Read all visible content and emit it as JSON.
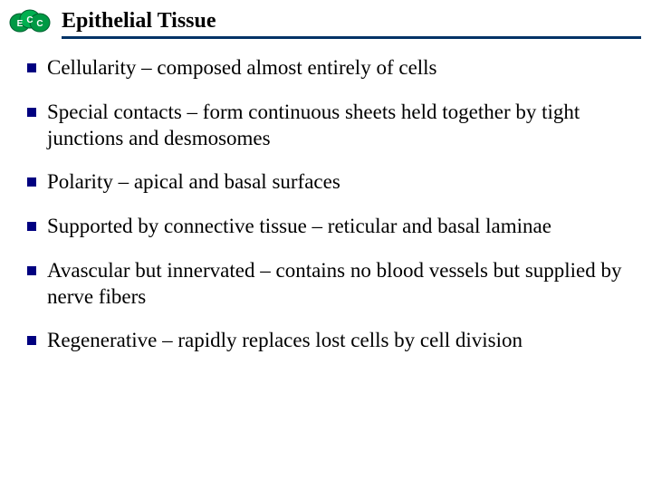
{
  "title": {
    "text": "Epithelial Tissue",
    "fontsize": 24,
    "color": "#000000"
  },
  "rule_color": "#003366",
  "logo": {
    "colors": [
      "#009944",
      "#00b050",
      "#009944"
    ],
    "stroke": "#006030"
  },
  "bullet_style": {
    "color": "#000080",
    "size": 10
  },
  "body": {
    "fontsize": 23,
    "color": "#000000",
    "items": [
      "Cellularity – composed almost entirely of cells",
      "Special contacts – form continuous sheets held together by tight junctions and desmosomes",
      "Polarity – apical and basal surfaces",
      "Supported by connective tissue – reticular and basal laminae",
      "Avascular but innervated – contains no blood vessels but supplied by nerve fibers",
      "Regenerative – rapidly replaces lost cells by cell division"
    ]
  }
}
